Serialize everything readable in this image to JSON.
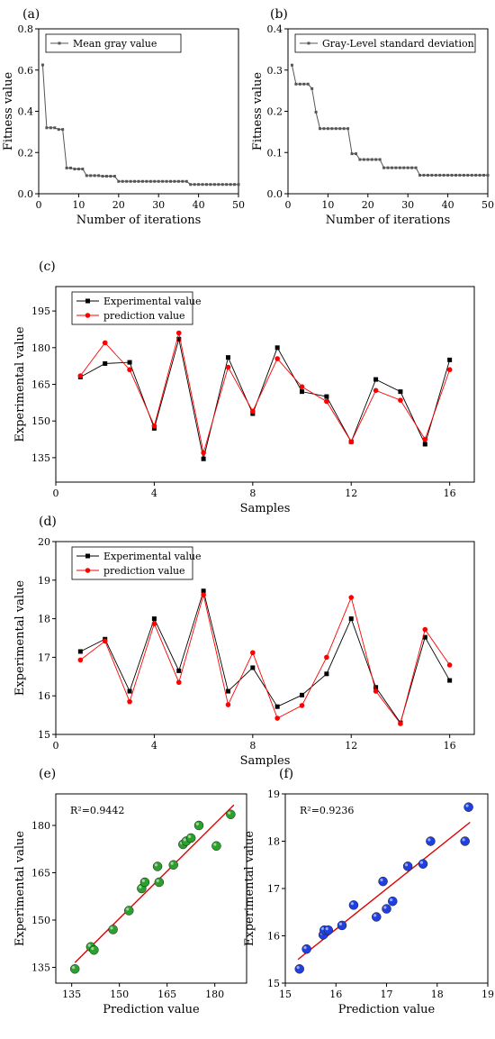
{
  "chart_data": [
    {
      "panel": "(a)",
      "type": "line",
      "xlabel": "Number of iterations",
      "ylabel": "Fitness value",
      "xlim": [
        0,
        50
      ],
      "ylim": [
        0,
        0.8
      ],
      "xticks": [
        0,
        10,
        20,
        30,
        40,
        50
      ],
      "yticks": [
        0.0,
        0.2,
        0.4,
        0.6,
        0.8
      ],
      "ytick_labels": [
        "0.0",
        "0.2",
        "0.4",
        "0.6",
        "0.8"
      ],
      "legend": "top-right",
      "series": [
        {
          "name": "Mean gray value",
          "color": "#555555",
          "marker": "square",
          "x": [
            1,
            2,
            3,
            4,
            5,
            6,
            7,
            8,
            9,
            10,
            11,
            12,
            13,
            14,
            15,
            16,
            17,
            18,
            19,
            20,
            21,
            22,
            23,
            24,
            25,
            26,
            27,
            28,
            29,
            30,
            31,
            32,
            33,
            34,
            35,
            36,
            37,
            38,
            39,
            40,
            41,
            42,
            43,
            44,
            45,
            46,
            47,
            48,
            49,
            50
          ],
          "y": [
            0.625,
            0.32,
            0.32,
            0.32,
            0.312,
            0.312,
            0.125,
            0.125,
            0.12,
            0.12,
            0.12,
            0.088,
            0.088,
            0.088,
            0.088,
            0.085,
            0.085,
            0.085,
            0.085,
            0.06,
            0.06,
            0.06,
            0.06,
            0.06,
            0.06,
            0.06,
            0.06,
            0.06,
            0.06,
            0.06,
            0.06,
            0.06,
            0.06,
            0.06,
            0.06,
            0.06,
            0.06,
            0.045,
            0.045,
            0.045,
            0.045,
            0.045,
            0.045,
            0.045,
            0.045,
            0.045,
            0.045,
            0.045,
            0.045,
            0.045
          ]
        }
      ]
    },
    {
      "panel": "(b)",
      "type": "line",
      "xlabel": "Number of iterations",
      "ylabel": "Fitness value",
      "xlim": [
        0,
        50
      ],
      "ylim": [
        0,
        0.4
      ],
      "xticks": [
        0,
        10,
        20,
        30,
        40,
        50
      ],
      "yticks": [
        0.0,
        0.1,
        0.2,
        0.3,
        0.4
      ],
      "ytick_labels": [
        "0.0",
        "0.1",
        "0.2",
        "0.3",
        "0.4"
      ],
      "legend": "top-right",
      "series": [
        {
          "name": "Gray-Level standard deviation",
          "color": "#555555",
          "marker": "square",
          "x": [
            1,
            2,
            3,
            4,
            5,
            6,
            7,
            8,
            9,
            10,
            11,
            12,
            13,
            14,
            15,
            16,
            17,
            18,
            19,
            20,
            21,
            22,
            23,
            24,
            25,
            26,
            27,
            28,
            29,
            30,
            31,
            32,
            33,
            34,
            35,
            36,
            37,
            38,
            39,
            40,
            41,
            42,
            43,
            44,
            45,
            46,
            47,
            48,
            49,
            50
          ],
          "y": [
            0.312,
            0.266,
            0.266,
            0.266,
            0.266,
            0.255,
            0.198,
            0.158,
            0.158,
            0.158,
            0.158,
            0.158,
            0.158,
            0.158,
            0.158,
            0.097,
            0.097,
            0.083,
            0.083,
            0.083,
            0.083,
            0.083,
            0.083,
            0.063,
            0.063,
            0.063,
            0.063,
            0.063,
            0.063,
            0.063,
            0.063,
            0.063,
            0.045,
            0.045,
            0.045,
            0.045,
            0.045,
            0.045,
            0.045,
            0.045,
            0.045,
            0.045,
            0.045,
            0.045,
            0.045,
            0.045,
            0.045,
            0.045,
            0.045,
            0.045
          ]
        }
      ]
    },
    {
      "panel": "(c)",
      "type": "line",
      "xlabel": "Samples",
      "ylabel": "Experimental value",
      "xlim": [
        0,
        17
      ],
      "ylim": [
        125,
        205
      ],
      "xticks": [
        0,
        4,
        8,
        12,
        16
      ],
      "yticks": [
        135,
        150,
        165,
        180,
        195
      ],
      "legend": "top-left",
      "series": [
        {
          "name": "Experimental value",
          "color": "#000000",
          "marker": "square",
          "x": [
            1,
            2,
            3,
            4,
            5,
            6,
            7,
            8,
            9,
            10,
            11,
            12,
            13,
            14,
            15,
            16
          ],
          "y": [
            168,
            173.5,
            174,
            147,
            183.5,
            134.5,
            176,
            153,
            180,
            162,
            160,
            141.5,
            167,
            162,
            140.5,
            175
          ]
        },
        {
          "name": "prediction value",
          "color": "#ff0000",
          "marker": "circle",
          "x": [
            1,
            2,
            3,
            4,
            5,
            6,
            7,
            8,
            9,
            10,
            11,
            12,
            13,
            14,
            15,
            16
          ],
          "y": [
            168.5,
            182,
            171,
            148,
            186,
            137,
            172,
            154,
            175.5,
            164,
            158,
            141.5,
            162.5,
            158.5,
            142.5,
            171
          ]
        }
      ]
    },
    {
      "panel": "(d)",
      "type": "line",
      "xlabel": "Samples",
      "ylabel": "Experimental value",
      "xlim": [
        0,
        17
      ],
      "ylim": [
        15,
        20
      ],
      "xticks": [
        0,
        4,
        8,
        12,
        16
      ],
      "yticks": [
        15,
        16,
        17,
        18,
        19,
        20
      ],
      "legend": "top-left",
      "series": [
        {
          "name": "Experimental value",
          "color": "#000000",
          "marker": "square",
          "x": [
            1,
            2,
            3,
            4,
            5,
            6,
            7,
            8,
            9,
            10,
            11,
            12,
            13,
            14,
            15,
            16
          ],
          "y": [
            17.15,
            17.47,
            16.12,
            18.0,
            16.65,
            18.72,
            16.12,
            16.73,
            15.72,
            16.02,
            16.57,
            18.0,
            16.22,
            15.3,
            17.52,
            16.4
          ]
        },
        {
          "name": "prediction value",
          "color": "#ff0000",
          "marker": "circle",
          "x": [
            1,
            2,
            3,
            4,
            5,
            6,
            7,
            8,
            9,
            10,
            11,
            12,
            13,
            14,
            15,
            16
          ],
          "y": [
            16.93,
            17.42,
            15.85,
            17.87,
            16.35,
            18.62,
            15.77,
            17.12,
            15.42,
            15.75,
            17.0,
            18.55,
            16.12,
            15.28,
            17.72,
            16.8
          ]
        }
      ]
    },
    {
      "panel": "(e)",
      "type": "scatter",
      "xlabel": "Prediction value",
      "ylabel": "Experimental value",
      "xlim": [
        130,
        190
      ],
      "ylim": [
        130,
        190
      ],
      "xticks": [
        135,
        150,
        165,
        180
      ],
      "yticks": [
        135,
        150,
        165,
        180
      ],
      "annotation": "R²=0.9442",
      "fit_line": {
        "color": "#dd0000",
        "x": [
          136,
          186
        ],
        "y": [
          136.5,
          186.5
        ]
      },
      "series": [
        {
          "color": "#2ca02c",
          "marker": "circle",
          "x": [
            136,
            141,
            142,
            148,
            153,
            157,
            158,
            162,
            162.5,
            167,
            170,
            171,
            172.5,
            175,
            180.5,
            185
          ],
          "y": [
            134.5,
            141.5,
            140.5,
            147,
            153,
            160,
            162,
            167,
            162,
            167.5,
            174,
            175,
            176,
            180,
            173.5,
            183.5
          ]
        }
      ]
    },
    {
      "panel": "(f)",
      "type": "scatter",
      "xlabel": "Prediction value",
      "ylabel": "Experimental value",
      "xlim": [
        15,
        19
      ],
      "ylim": [
        15,
        19
      ],
      "xticks": [
        15,
        16,
        17,
        18,
        19
      ],
      "yticks": [
        15,
        16,
        17,
        18,
        19
      ],
      "annotation": "R²=0.9236",
      "fit_line": {
        "color": "#dd0000",
        "x": [
          15.25,
          18.65
        ],
        "y": [
          15.5,
          18.4
        ]
      },
      "series": [
        {
          "color": "#1f3fe0",
          "marker": "circle",
          "x": [
            15.28,
            15.42,
            15.75,
            15.77,
            15.85,
            16.12,
            16.35,
            16.8,
            16.93,
            17.0,
            17.12,
            17.42,
            17.72,
            17.87,
            18.55,
            18.62
          ],
          "y": [
            15.3,
            15.72,
            16.02,
            16.12,
            16.12,
            16.22,
            16.65,
            16.4,
            17.15,
            16.57,
            16.73,
            17.47,
            17.52,
            18.0,
            18.0,
            18.72
          ]
        }
      ]
    }
  ]
}
